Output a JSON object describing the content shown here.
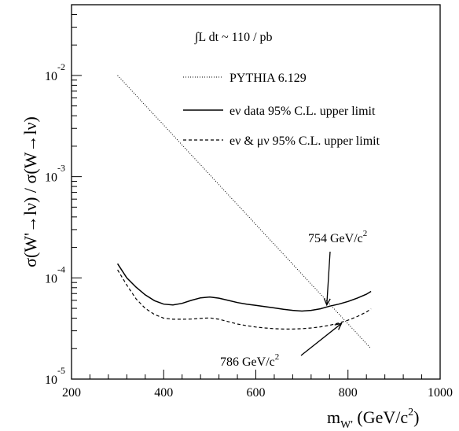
{
  "chart_data": {
    "type": "line",
    "xlabel": {
      "main": "m",
      "sub": "W'",
      "rest": " (GeV/c",
      "sup": "2",
      "close": ")"
    },
    "ylabel": "σ(W'→lν) / σ(W→lν)",
    "xlim": [
      200,
      1000
    ],
    "ylim": [
      1e-05,
      0.05
    ],
    "yscale": "log",
    "xticks": [
      200,
      400,
      600,
      800,
      1000
    ],
    "yticks": [
      {
        "value": 1e-05,
        "base": "10",
        "exp": "-5"
      },
      {
        "value": 0.0001,
        "base": "10",
        "exp": "-4"
      },
      {
        "value": 0.001,
        "base": "10",
        "exp": "-3"
      },
      {
        "value": 0.01,
        "base": "10",
        "exp": "-2"
      }
    ],
    "luminosity_label": "∫L dt ~ 110 / pb",
    "series": [
      {
        "name": "PYTHIA 6.129",
        "style": "dotted",
        "x": [
          300,
          850
        ],
        "y": [
          0.01,
          2e-05
        ]
      },
      {
        "name": "eν data 95% C.L. upper limit",
        "style": "solid",
        "x": [
          300,
          320,
          340,
          360,
          380,
          400,
          420,
          440,
          460,
          480,
          500,
          520,
          540,
          560,
          580,
          600,
          620,
          640,
          660,
          680,
          700,
          720,
          740,
          760,
          780,
          800,
          820,
          840,
          850
        ],
        "y": [
          0.000138,
          0.0001,
          8.1e-05,
          6.8e-05,
          5.95e-05,
          5.5e-05,
          5.4e-05,
          5.6e-05,
          6e-05,
          6.35e-05,
          6.48e-05,
          6.3e-05,
          6e-05,
          5.7e-05,
          5.5e-05,
          5.35e-05,
          5.2e-05,
          5.05e-05,
          4.9e-05,
          4.78e-05,
          4.7e-05,
          4.78e-05,
          4.95e-05,
          5.25e-05,
          5.5e-05,
          5.85e-05,
          6.3e-05,
          6.9e-05,
          7.35e-05
        ]
      },
      {
        "name": "eν & μν 95% C.L. upper limit",
        "style": "dashed",
        "x": [
          300,
          320,
          340,
          360,
          380,
          400,
          420,
          440,
          460,
          480,
          500,
          520,
          540,
          560,
          580,
          600,
          620,
          640,
          660,
          680,
          700,
          720,
          740,
          760,
          780,
          800,
          820,
          840,
          850
        ],
        "y": [
          0.00012,
          8.5e-05,
          6.2e-05,
          5e-05,
          4.35e-05,
          4e-05,
          3.9e-05,
          3.9e-05,
          3.92e-05,
          3.98e-05,
          4.02e-05,
          3.9e-05,
          3.7e-05,
          3.5e-05,
          3.37e-05,
          3.27e-05,
          3.2e-05,
          3.15e-05,
          3.12e-05,
          3.12e-05,
          3.15e-05,
          3.2e-05,
          3.28e-05,
          3.4e-05,
          3.58e-05,
          3.82e-05,
          4.15e-05,
          4.6e-05,
          4.95e-05
        ]
      }
    ],
    "annotations": [
      {
        "base": "754 GeV/c",
        "sup": "2",
        "target_x": 754,
        "target_y": 5.4e-05
      },
      {
        "base": "786 GeV/c",
        "sup": "2",
        "target_x": 786,
        "target_y": 3.55e-05
      }
    ]
  }
}
